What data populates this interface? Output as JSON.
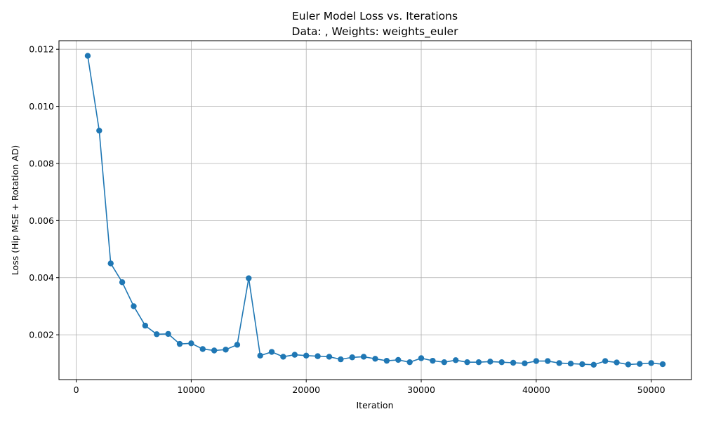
{
  "chart_data": {
    "type": "line",
    "title_line1": "Euler Model Loss vs. Iterations",
    "title_line2": "Data: , Weights: weights_euler",
    "xlabel": "Iteration",
    "ylabel": "Loss (Hip MSE + Rotation AD)",
    "xlim": [
      -1500,
      53500
    ],
    "ylim": [
      0.00043,
      0.0123
    ],
    "xticks": [
      0,
      10000,
      20000,
      30000,
      40000,
      50000
    ],
    "yticks": [
      0.002,
      0.004,
      0.006,
      0.008,
      0.01,
      0.012
    ],
    "ytick_labels": [
      "0.002",
      "0.004",
      "0.006",
      "0.008",
      "0.010",
      "0.012"
    ],
    "grid": true,
    "color": "#1f77b4",
    "x": [
      1000,
      2000,
      3000,
      4000,
      5000,
      6000,
      7000,
      8000,
      9000,
      10000,
      11000,
      12000,
      13000,
      14000,
      15000,
      16000,
      17000,
      18000,
      19000,
      20000,
      21000,
      22000,
      23000,
      24000,
      25000,
      26000,
      27000,
      28000,
      29000,
      30000,
      31000,
      32000,
      33000,
      34000,
      35000,
      36000,
      37000,
      38000,
      39000,
      40000,
      41000,
      42000,
      43000,
      44000,
      45000,
      46000,
      47000,
      48000,
      49000,
      50000,
      51000
    ],
    "y": [
      0.01177,
      0.00915,
      0.0045,
      0.00384,
      0.003,
      0.00232,
      0.00202,
      0.00203,
      0.00168,
      0.0017,
      0.0015,
      0.00145,
      0.00148,
      0.00165,
      0.00398,
      0.00127,
      0.0014,
      0.00123,
      0.0013,
      0.00127,
      0.00125,
      0.00123,
      0.00114,
      0.00121,
      0.00123,
      0.00116,
      0.00109,
      0.00112,
      0.00104,
      0.00118,
      0.00109,
      0.00104,
      0.00111,
      0.00104,
      0.00104,
      0.00106,
      0.00104,
      0.00102,
      0.001,
      0.00108,
      0.00108,
      0.00101,
      0.00099,
      0.00097,
      0.00095,
      0.00108,
      0.00103,
      0.00096,
      0.00098,
      0.00101,
      0.00097
    ]
  }
}
